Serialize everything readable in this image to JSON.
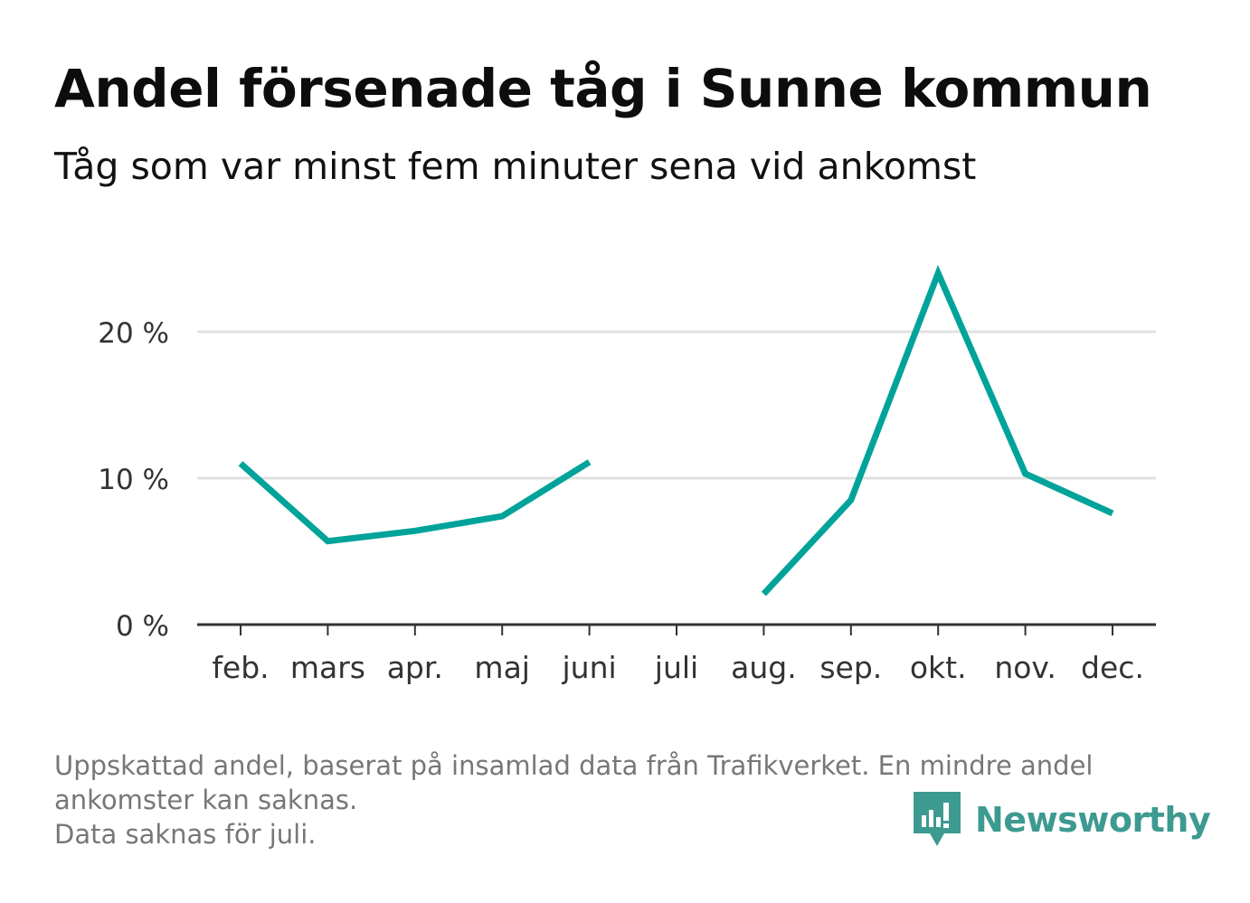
{
  "header": {
    "title": "Andel försenade tåg i Sunne kommun",
    "subtitle": "Tåg som var minst fem minuter sena vid ankomst"
  },
  "chart_data": {
    "type": "line",
    "title": "Andel försenade tåg i Sunne kommun",
    "subtitle": "Tåg som var minst fem minuter sena vid ankomst",
    "xlabel": "",
    "ylabel": "",
    "categories": [
      "feb.",
      "mars",
      "apr.",
      "maj",
      "juni",
      "juli",
      "aug.",
      "sep.",
      "okt.",
      "nov.",
      "dec."
    ],
    "series": [
      {
        "name": "Andel försenade tåg",
        "values": [
          11.0,
          5.7,
          6.4,
          7.4,
          11.1,
          null,
          2.1,
          8.5,
          24.0,
          10.3,
          7.6
        ]
      }
    ],
    "y_ticks": [
      0,
      10,
      20
    ],
    "y_tick_labels": [
      "0 %",
      "10 %",
      "20 %"
    ],
    "ylim": [
      0,
      26
    ],
    "grid": true,
    "color": "#00a39a"
  },
  "footnote": {
    "lines": [
      "Uppskattad andel, baserat på insamlad data från Trafikverket. En mindre andel",
      "ankomster kan saknas.",
      "Data saknas för juli."
    ]
  },
  "brand": {
    "name": "Newsworthy",
    "icon": "newsworthy-logo-icon",
    "color": "#3d9a90"
  }
}
